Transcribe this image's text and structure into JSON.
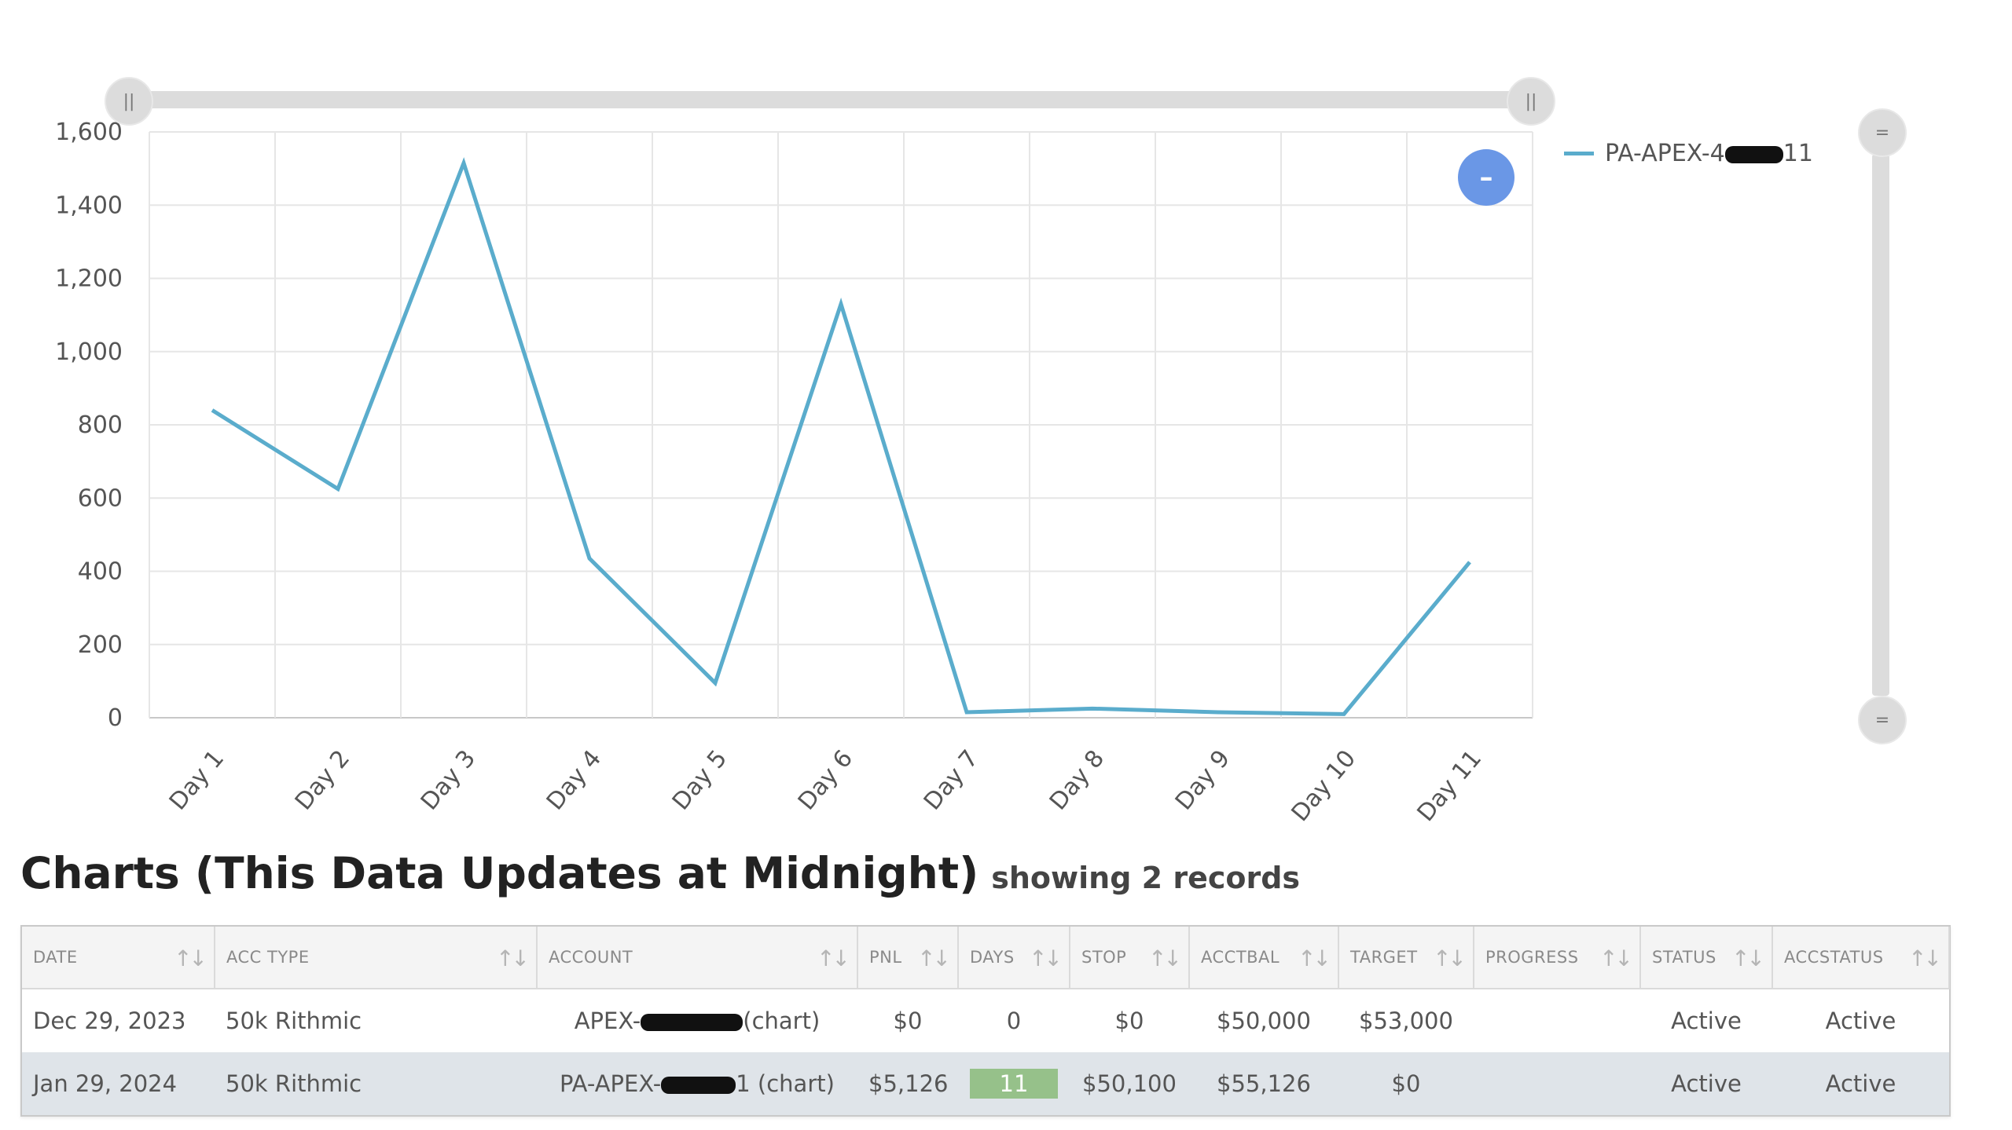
{
  "chart_data": {
    "type": "line",
    "categories": [
      "Day 1",
      "Day 2",
      "Day 3",
      "Day 4",
      "Day 5",
      "Day 6",
      "Day 7",
      "Day 8",
      "Day 9",
      "Day 10",
      "Day 11"
    ],
    "series": [
      {
        "name": "PA-APEX-4████-11",
        "values": [
          840,
          625,
          1515,
          435,
          95,
          1130,
          15,
          25,
          15,
          10,
          425
        ]
      }
    ],
    "y_ticks": [
      "0",
      "200",
      "400",
      "600",
      "800",
      "1,000",
      "1,200",
      "1,400",
      "1,600"
    ],
    "ylim": [
      0,
      1600
    ],
    "grid": true,
    "legend_position": "right",
    "line_color": "#5aaccc"
  },
  "legend": {
    "prefix": "PA-APEX-4",
    "suffix": "11"
  },
  "zoom_button": {
    "icon": "minus-icon",
    "glyph": "–"
  },
  "sliders": {
    "handle_glyph_h": "||",
    "handle_glyph_v": "="
  },
  "heading": {
    "title": "Charts (This Data Updates at Midnight)",
    "subtitle": "showing 2 records"
  },
  "table": {
    "columns": [
      "DATE",
      "ACC TYPE",
      "ACCOUNT",
      "PNL",
      "DAYS",
      "STOP",
      "ACCTBAL",
      "TARGET",
      "PROGRESS",
      "STATUS",
      "ACCSTATUS"
    ],
    "sort_glyph": "↑↓",
    "rows": [
      {
        "date": "Dec 29, 2023",
        "acc_type": "50k Rithmic",
        "account_prefix": "APEX-",
        "account_suffix": "(chart)",
        "pnl": "$0",
        "days": "0",
        "stop": "$0",
        "acctbal": "$50,000",
        "target": "$53,000",
        "progress": "",
        "status": "Active",
        "accstatus": "Active"
      },
      {
        "date": "Jan 29, 2024",
        "acc_type": "50k Rithmic",
        "account_prefix": "PA-APEX-",
        "account_suffix": "1 (chart)",
        "pnl": "$5,126",
        "days": "11",
        "stop": "$50,100",
        "acctbal": "$55,126",
        "target": "$0",
        "progress": "",
        "status": "Active",
        "accstatus": "Active"
      }
    ]
  }
}
